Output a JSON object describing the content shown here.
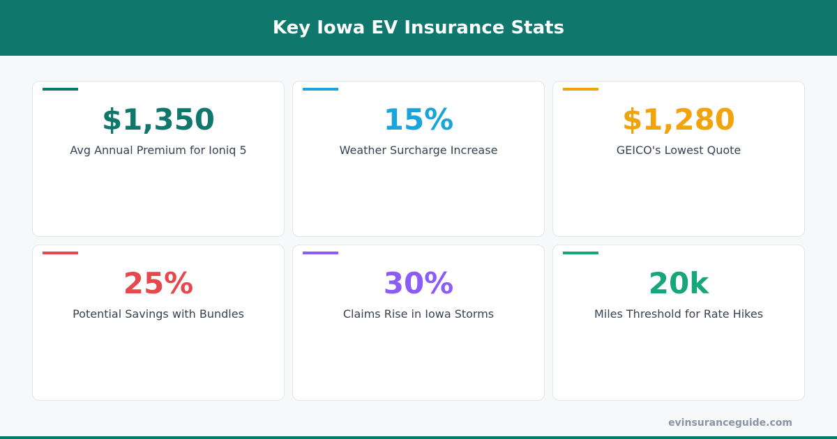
{
  "header": {
    "title": "Key Iowa EV Insurance Stats"
  },
  "cards": [
    {
      "value": "$1,350",
      "label": "Avg Annual Premium for Ioniq 5"
    },
    {
      "value": "15%",
      "label": "Weather Surcharge Increase"
    },
    {
      "value": "$1,280",
      "label": "GEICO's Lowest Quote"
    },
    {
      "value": "25%",
      "label": "Potential Savings with Bundles"
    },
    {
      "value": "30%",
      "label": "Claims Rise in Iowa Storms"
    },
    {
      "value": "20k",
      "label": "Miles Threshold for Rate Hikes"
    }
  ],
  "footer": {
    "site": "evinsuranceguide.com"
  }
}
